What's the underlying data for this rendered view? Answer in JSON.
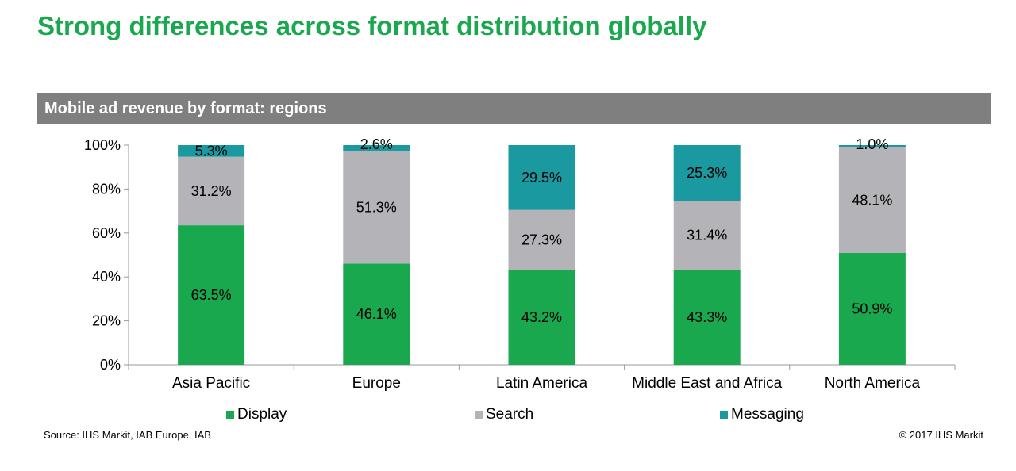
{
  "page": {
    "title": "Strong differences across format distribution globally"
  },
  "panel": {
    "title": "Mobile ad revenue by format: regions",
    "source": "Source: IHS Markit, IAB Europe, IAB",
    "copyright": "© 2017 IHS Markit"
  },
  "chart_data": {
    "type": "bar",
    "stacked": true,
    "title": "Mobile ad revenue by format: regions",
    "categories": [
      "Asia Pacific",
      "Europe",
      "Latin America",
      "Middle East and Africa",
      "North America"
    ],
    "series": [
      {
        "name": "Display",
        "color": "#1aa84f",
        "values": [
          63.5,
          46.1,
          43.2,
          43.3,
          50.9
        ]
      },
      {
        "name": "Search",
        "color": "#b4b4b8",
        "values": [
          31.2,
          51.3,
          27.3,
          31.4,
          48.1
        ]
      },
      {
        "name": "Messaging",
        "color": "#1a9aa0",
        "values": [
          5.3,
          2.6,
          29.5,
          25.3,
          1.0
        ]
      }
    ],
    "y_ticks": [
      "0%",
      "20%",
      "40%",
      "60%",
      "80%",
      "100%"
    ],
    "ylim": [
      0,
      100
    ],
    "legend_position": "bottom",
    "grid": false
  }
}
